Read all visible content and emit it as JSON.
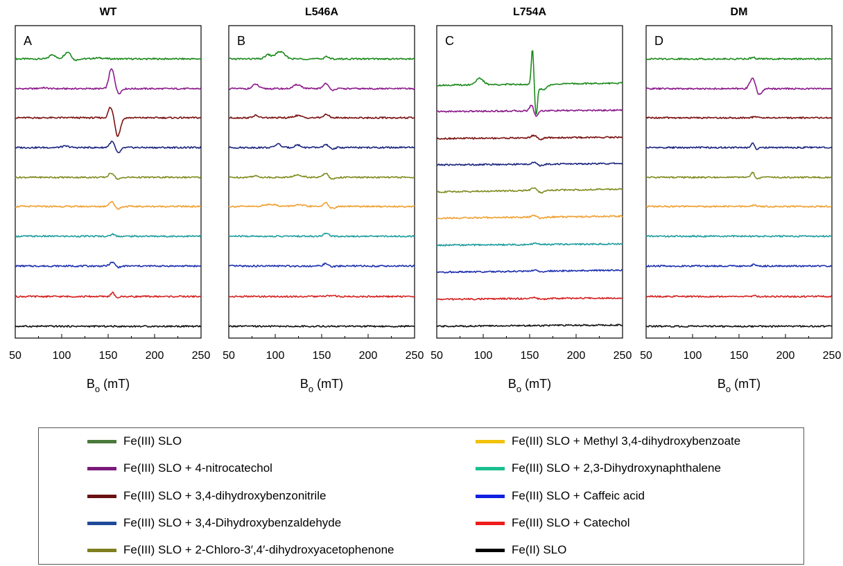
{
  "chart_data": [
    {
      "type": "line",
      "title": "WT",
      "panel_label": "A",
      "xlabel": "B",
      "xlabel_sub": "o",
      "xlabel_unit": "(mT)",
      "xlim": [
        50,
        250
      ],
      "xticks": [
        "50",
        "100",
        "150",
        "200",
        "250"
      ],
      "series": [
        {
          "name": "Fe(III) SLO",
          "color": "#1a8a1a",
          "peaks": [
            [
              90,
              1.0,
              3
            ],
            [
              107,
              1.6,
              4
            ],
            [
              113,
              -0.6,
              3
            ],
            [
              140,
              0.2,
              6
            ]
          ]
        },
        {
          "name": "Fe(III) SLO + 4-nitrocatechol",
          "color": "#8b1a8b",
          "peaks": [
            [
              80,
              0.2,
              4
            ],
            [
              152,
              1.5,
              2
            ],
            [
              155,
              3.8,
              3
            ],
            [
              160,
              -1.6,
              3
            ]
          ]
        },
        {
          "name": "Fe(III) SLO + 3,4-dihydroxybenzonitrile",
          "color": "#7a1010",
          "peaks": [
            [
              152,
              2.2,
              2
            ],
            [
              156,
              1.5,
              2
            ],
            [
              160,
              -4.2,
              3
            ]
          ]
        },
        {
          "name": "Fe(III) SLO + 3,4-Dihydroxybenzaldehyde",
          "color": "#1a237e",
          "peaks": [
            [
              104,
              0.3,
              4
            ],
            [
              155,
              1.6,
              3
            ],
            [
              160,
              -1.5,
              3
            ]
          ]
        },
        {
          "name": "Fe(III) SLO + 2-Chloro-3′,4′-dihydroxyacetophenone",
          "color": "#7f8c1f",
          "peaks": [
            [
              154,
              1.0,
              3
            ],
            [
              160,
              -0.5,
              3
            ]
          ]
        },
        {
          "name": "Fe(III) SLO + Methyl 3,4-dihydroxybenzoate",
          "color": "#f0a030",
          "peaks": [
            [
              154,
              1.1,
              3
            ],
            [
              160,
              -0.6,
              3
            ]
          ]
        },
        {
          "name": "Fe(III) SLO + 2,3-Dihydroxynaphthalene",
          "color": "#1e9d9d",
          "peaks": [
            [
              155,
              0.5,
              2
            ]
          ]
        },
        {
          "name": "Fe(III) SLO + Caffeic acid",
          "color": "#1c2fb0",
          "peaks": [
            [
              155,
              0.9,
              3
            ],
            [
              160,
              -0.4,
              3
            ]
          ]
        },
        {
          "name": "Fe(III) SLO + Catechol",
          "color": "#d62020",
          "peaks": [
            [
              155,
              0.9,
              2
            ],
            [
              159,
              -0.4,
              2
            ]
          ]
        },
        {
          "name": "Fe(II) SLO",
          "color": "#111111",
          "peaks": []
        }
      ]
    },
    {
      "type": "line",
      "title": "L546A",
      "panel_label": "B",
      "xlabel": "B",
      "xlabel_sub": "o",
      "xlabel_unit": "(mT)",
      "xlim": [
        50,
        250
      ],
      "xticks": [
        "50",
        "100",
        "150",
        "200",
        "250"
      ],
      "series": [
        {
          "name": "Fe(III) SLO",
          "color": "#1a8a1a",
          "peaks": [
            [
              92,
              0.9,
              3
            ],
            [
              105,
              1.6,
              5
            ],
            [
              155,
              0.6,
              2
            ]
          ]
        },
        {
          "name": "Fe(III) SLO + 4-nitrocatechol",
          "color": "#8b1a8b",
          "peaks": [
            [
              79,
              1.0,
              3
            ],
            [
              124,
              0.9,
              4
            ],
            [
              155,
              1.4,
              3
            ],
            [
              159,
              -0.6,
              3
            ]
          ]
        },
        {
          "name": "Fe(III) SLO + 3,4-dihydroxybenzonitrile",
          "color": "#7a1010",
          "peaks": [
            [
              79,
              0.5,
              3
            ],
            [
              124,
              0.5,
              4
            ],
            [
              155,
              0.7,
              3
            ]
          ]
        },
        {
          "name": "Fe(III) SLO + 3,4-Dihydroxybenzaldehyde",
          "color": "#1a237e",
          "peaks": [
            [
              103,
              0.8,
              3
            ],
            [
              124,
              0.6,
              3
            ],
            [
              155,
              0.7,
              3
            ],
            [
              160,
              -0.4,
              3
            ]
          ]
        },
        {
          "name": "Fe(III) SLO + 2-Chloro-3′,4′-dihydroxyacetophenone",
          "color": "#7f8c1f",
          "peaks": [
            [
              78,
              0.3,
              4
            ],
            [
              125,
              0.5,
              5
            ],
            [
              155,
              1.1,
              3
            ],
            [
              160,
              -0.6,
              3
            ]
          ]
        },
        {
          "name": "Fe(III) SLO + Methyl 3,4-dihydroxybenzoate",
          "color": "#f0a030",
          "peaks": [
            [
              95,
              0.5,
              6
            ],
            [
              125,
              0.3,
              6
            ],
            [
              155,
              0.8,
              3
            ],
            [
              161,
              -0.5,
              3
            ]
          ]
        },
        {
          "name": "Fe(III) SLO + 2,3-Dihydroxynaphthalene",
          "color": "#1e9d9d",
          "peaks": [
            [
              155,
              0.6,
              3
            ]
          ]
        },
        {
          "name": "Fe(III) SLO + Caffeic acid",
          "color": "#1c2fb0",
          "peaks": [
            [
              155,
              0.6,
              3
            ],
            [
              160,
              -0.3,
              3
            ]
          ]
        },
        {
          "name": "Fe(III) SLO + Catechol",
          "color": "#d62020",
          "peaks": [
            [
              160,
              0.2,
              4
            ]
          ]
        },
        {
          "name": "Fe(II) SLO",
          "color": "#111111",
          "peaks": []
        }
      ]
    },
    {
      "type": "line",
      "title": "L754A",
      "panel_label": "C",
      "xlabel": "B",
      "xlabel_sub": "o",
      "xlabel_unit": "(mT)",
      "xlim": [
        50,
        250
      ],
      "xticks": [
        "50",
        "100",
        "150",
        "200",
        "250"
      ],
      "series": [
        {
          "name": "Fe(III) SLO",
          "color": "#1a8a1a",
          "peaks": [
            [
              96,
              1.4,
              4
            ],
            [
              153,
              8.0,
              1.2
            ],
            [
              157,
              -6.5,
              1.3
            ],
            [
              164,
              -1.2,
              5
            ]
          ]
        },
        {
          "name": "Fe(III) SLO + 4-nitrocatechol",
          "color": "#8b1a8b",
          "peaks": [
            [
              152,
              1.3,
              2
            ],
            [
              157,
              -1.2,
              2
            ]
          ]
        },
        {
          "name": "Fe(III) SLO + 3,4-dihydroxybenzonitrile",
          "color": "#7a1010",
          "peaks": [
            [
              155,
              0.6,
              3
            ],
            [
              161,
              -0.4,
              3
            ]
          ]
        },
        {
          "name": "Fe(III) SLO + 3,4-Dihydroxybenzaldehyde",
          "color": "#1a237e",
          "peaks": [
            [
              155,
              0.4,
              3
            ],
            [
              161,
              -0.4,
              3
            ]
          ]
        },
        {
          "name": "Fe(III) SLO + 2-Chloro-3′,4′-dihydroxyacetophenone",
          "color": "#7f8c1f",
          "peaks": [
            [
              155,
              0.6,
              3
            ],
            [
              162,
              -0.5,
              4
            ]
          ]
        },
        {
          "name": "Fe(III) SLO + Methyl 3,4-dihydroxybenzoate",
          "color": "#f0a030",
          "peaks": [
            [
              155,
              0.4,
              3
            ],
            [
              162,
              -0.3,
              4
            ]
          ]
        },
        {
          "name": "Fe(III) SLO + 2,3-Dihydroxynaphthalene",
          "color": "#1e9d9d",
          "peaks": [
            [
              156,
              0.3,
              3
            ]
          ]
        },
        {
          "name": "Fe(III) SLO + Caffeic acid",
          "color": "#1c2fb0",
          "peaks": [
            [
              156,
              0.3,
              3
            ],
            [
              162,
              -0.3,
              3
            ]
          ]
        },
        {
          "name": "Fe(III) SLO + Catechol",
          "color": "#d62020",
          "peaks": [
            [
              156,
              0.3,
              3
            ],
            [
              162,
              -0.3,
              3
            ]
          ]
        },
        {
          "name": "Fe(II) SLO",
          "color": "#111111",
          "peaks": []
        }
      ]
    },
    {
      "type": "line",
      "title": "DM",
      "panel_label": "D",
      "xlabel": "B",
      "xlabel_sub": "o",
      "xlabel_unit": "(mT)",
      "xlim": [
        50,
        250
      ],
      "xticks": [
        "50",
        "100",
        "150",
        "200",
        "250"
      ],
      "series": [
        {
          "name": "Fe(III) SLO",
          "color": "#1a8a1a",
          "peaks": [
            [
              165,
              0.4,
              2
            ]
          ]
        },
        {
          "name": "Fe(III) SLO + 4-nitrocatechol",
          "color": "#8b1a8b",
          "peaks": [
            [
              165,
              2.6,
              3
            ],
            [
              171,
              -1.6,
              3
            ]
          ]
        },
        {
          "name": "Fe(III) SLO + 3,4-dihydroxybenzonitrile",
          "color": "#7a1010",
          "peaks": [
            [
              167,
              0.3,
              2
            ]
          ]
        },
        {
          "name": "Fe(III) SLO + 3,4-Dihydroxybenzaldehyde",
          "color": "#1a237e",
          "peaks": [
            [
              165,
              1.0,
              2
            ],
            [
              169,
              -0.5,
              2
            ]
          ]
        },
        {
          "name": "Fe(III) SLO + 2-Chloro-3′,4′-dihydroxyacetophenone",
          "color": "#7f8c1f",
          "peaks": [
            [
              165,
              1.1,
              2
            ],
            [
              169,
              -0.5,
              2
            ]
          ]
        },
        {
          "name": "Fe(III) SLO + Methyl 3,4-dihydroxybenzoate",
          "color": "#f0a030",
          "peaks": [
            [
              166,
              0.3,
              2
            ]
          ]
        },
        {
          "name": "Fe(III) SLO + 2,3-Dihydroxynaphthalene",
          "color": "#1e9d9d",
          "peaks": []
        },
        {
          "name": "Fe(III) SLO + Caffeic acid",
          "color": "#1c2fb0",
          "peaks": [
            [
              166,
              0.3,
              2
            ]
          ]
        },
        {
          "name": "Fe(III) SLO + Catechol",
          "color": "#d62020",
          "peaks": [
            [
              167,
              0.2,
              2
            ]
          ]
        },
        {
          "name": "Fe(II) SLO",
          "color": "#111111",
          "peaks": []
        }
      ]
    }
  ],
  "legend": {
    "items": [
      {
        "label": "Fe(III) SLO",
        "color": "#4a7a3a"
      },
      {
        "label": "Fe(III) SLO + 4-nitrocatechol",
        "color": "#7a1a7a"
      },
      {
        "label": "Fe(III) SLO + 3,4-dihydroxybenzonitrile",
        "color": "#6a1010"
      },
      {
        "label": "Fe(III) SLO + 3,4-Dihydroxybenzaldehyde",
        "color": "#1f4a9a"
      },
      {
        "label": "Fe(III) SLO + 2-Chloro-3′,4′-dihydroxyacetophenone",
        "color": "#7f7f20"
      },
      {
        "label": "Fe(III) SLO + Methyl 3,4-dihydroxybenzoate",
        "color": "#f2c20a"
      },
      {
        "label": "Fe(III) SLO + 2,3-Dihydroxynaphthalene",
        "color": "#1abf8f"
      },
      {
        "label": "Fe(III) SLO + Caffeic acid",
        "color": "#1020e0"
      },
      {
        "label": "Fe(III) SLO + Catechol",
        "color": "#ee1c1c"
      },
      {
        "label": "Fe(II) SLO",
        "color": "#000000"
      }
    ]
  }
}
